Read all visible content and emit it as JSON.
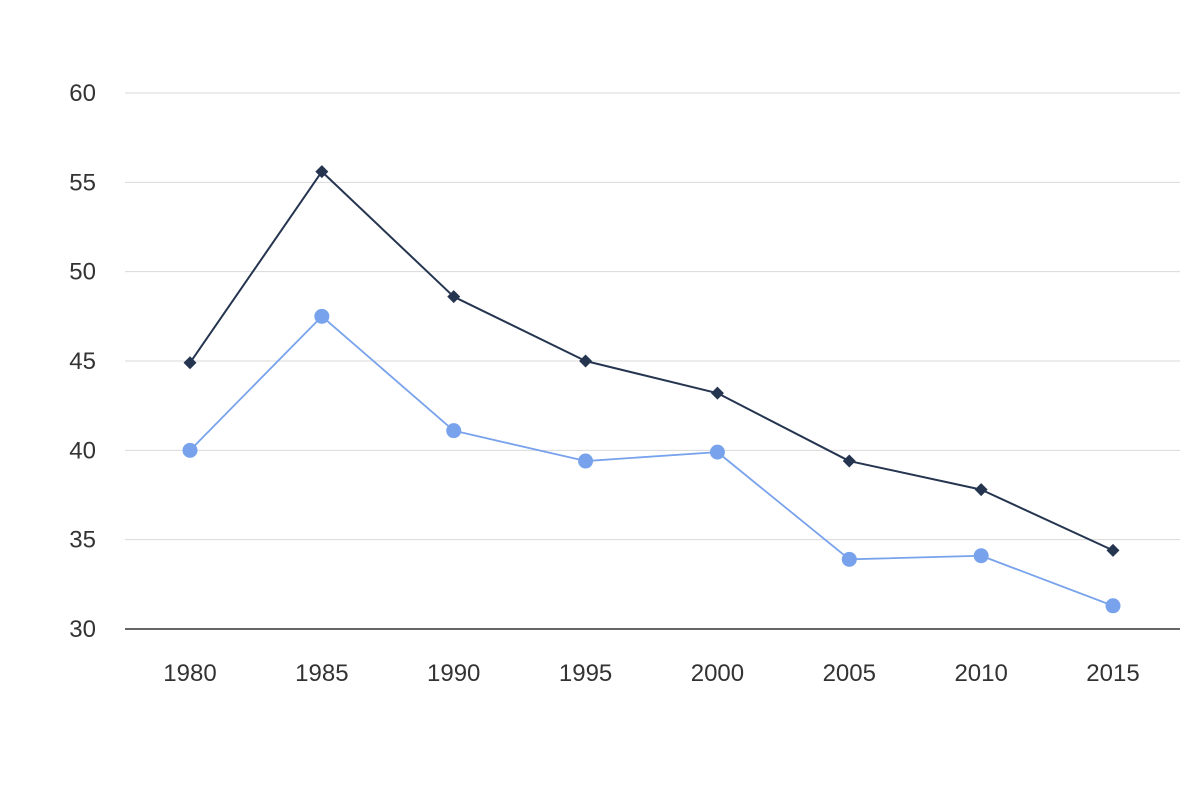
{
  "chart_data": {
    "type": "line",
    "title": "",
    "xlabel": "",
    "ylabel": "",
    "categories": [
      "1980",
      "1985",
      "1990",
      "1995",
      "2000",
      "2005",
      "2010",
      "2015"
    ],
    "ylim": [
      30,
      60
    ],
    "yticks": [
      30,
      35,
      40,
      45,
      50,
      55,
      60
    ],
    "grid": true,
    "legend": "none",
    "series": [
      {
        "marker": "diamond",
        "color": "#253550",
        "values": [
          44.9,
          55.6,
          48.6,
          45.0,
          43.2,
          39.4,
          37.8,
          34.4
        ]
      },
      {
        "marker": "circle",
        "color": "#78A3EC",
        "values": [
          40.0,
          47.5,
          41.1,
          39.4,
          39.9,
          33.9,
          34.1,
          31.3
        ]
      }
    ]
  }
}
